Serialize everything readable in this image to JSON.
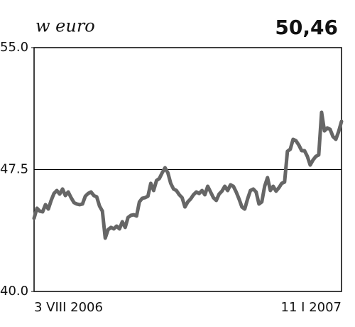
{
  "chart_data": {
    "type": "line",
    "title": "w euro",
    "headline": "50,46",
    "categories": [
      "3 VIII 2006",
      null,
      null,
      null,
      null,
      null,
      null,
      null,
      null,
      null,
      null,
      null,
      null,
      null,
      null,
      null,
      null,
      null,
      null,
      null,
      null,
      null,
      null,
      null,
      null,
      null,
      null,
      null,
      null,
      null,
      null,
      null,
      null,
      null,
      null,
      null,
      null,
      null,
      null,
      null,
      null,
      null,
      null,
      null,
      null,
      null,
      null,
      null,
      null,
      null,
      null,
      null,
      null,
      null,
      null,
      null,
      null,
      null,
      null,
      null,
      null,
      null,
      null,
      null,
      null,
      null,
      null,
      null,
      null,
      null,
      null,
      null,
      null,
      null,
      null,
      null,
      null,
      null,
      null,
      null,
      null,
      null,
      null,
      null,
      null,
      null,
      null,
      null,
      null,
      null,
      null,
      null,
      null,
      null,
      null,
      null,
      null,
      null,
      null,
      null,
      null,
      null,
      null,
      null,
      null,
      null,
      null,
      null,
      "11 I 2007"
    ],
    "series": [
      {
        "color": "#666666",
        "values": [
          44.5,
          45.12,
          44.94,
          44.9,
          45.34,
          45.07,
          45.6,
          46.03,
          46.21,
          45.99,
          46.3,
          45.9,
          46.12,
          45.77,
          45.47,
          45.38,
          45.34,
          45.38,
          45.86,
          46.03,
          46.12,
          45.9,
          45.82,
          45.25,
          44.94,
          43.28,
          43.8,
          43.94,
          43.85,
          44.02,
          43.85,
          44.29,
          43.94,
          44.55,
          44.68,
          44.72,
          44.64,
          45.51,
          45.73,
          45.77,
          45.86,
          46.65,
          46.21,
          46.82,
          46.95,
          47.3,
          47.61,
          47.3,
          46.65,
          46.3,
          46.21,
          45.95,
          45.77,
          45.2,
          45.51,
          45.69,
          45.95,
          46.12,
          46.03,
          46.21,
          45.95,
          46.47,
          46.12,
          45.77,
          45.6,
          45.99,
          46.17,
          46.47,
          46.21,
          46.56,
          46.47,
          46.12,
          45.69,
          45.2,
          45.07,
          45.69,
          46.21,
          46.3,
          46.12,
          45.38,
          45.51,
          46.47,
          47.0,
          46.21,
          46.47,
          46.17,
          46.38,
          46.65,
          46.73,
          48.62,
          48.75,
          49.36,
          49.27,
          49.01,
          48.66,
          48.66,
          48.31,
          47.78,
          48.09,
          48.31,
          48.4,
          51.02,
          49.88,
          50.06,
          49.97,
          49.53,
          49.36,
          49.84,
          50.46
        ]
      }
    ],
    "ylim": [
      40,
      55
    ],
    "yticks": [
      {
        "value": 40,
        "label": "40.0"
      },
      {
        "value": 47.5,
        "label": "47.5"
      },
      {
        "value": 55,
        "label": "55.0"
      }
    ],
    "grid": true
  }
}
